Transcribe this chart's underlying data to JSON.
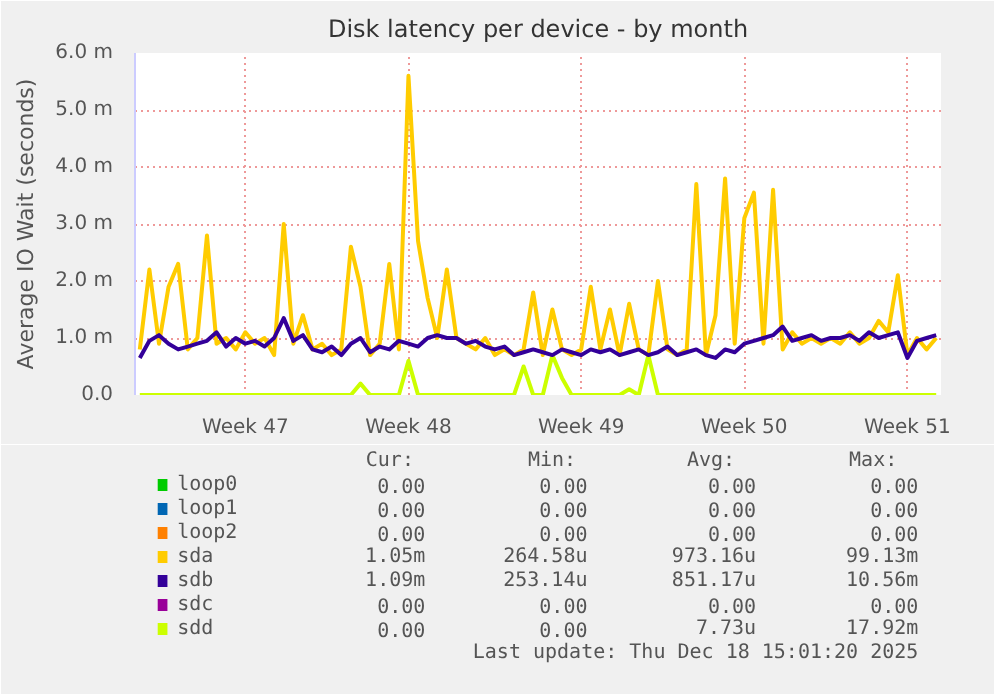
{
  "chart_data": {
    "type": "line",
    "title": "Disk latency per device - by month",
    "ylabel": "Average IO Wait (seconds)",
    "series": [
      {
        "name": "loop0",
        "color": "#00cc00",
        "values": [
          null,
          null,
          null,
          null,
          null,
          null,
          null,
          null,
          null,
          null,
          null,
          null,
          null,
          null,
          null,
          null,
          null,
          null,
          null,
          null,
          null,
          null,
          null,
          null,
          null,
          null,
          null,
          null,
          null,
          null,
          null,
          null,
          null,
          null,
          null,
          null,
          null,
          null,
          null,
          null,
          null,
          null,
          null,
          null,
          null,
          null,
          null,
          null,
          null,
          null,
          null,
          null,
          null,
          null,
          null,
          null,
          null,
          null,
          null,
          null,
          null,
          null,
          null,
          null,
          null,
          null,
          null,
          null,
          null,
          null,
          null,
          null,
          null,
          null,
          null,
          null,
          null,
          null,
          null,
          null,
          null,
          null,
          null,
          null
        ]
      },
      {
        "name": "loop1",
        "color": "#0066b3",
        "values": [
          null,
          null,
          null,
          null,
          null,
          null,
          null,
          null,
          null,
          null,
          null,
          null,
          null,
          null,
          null,
          null,
          null,
          null,
          null,
          null,
          null,
          null,
          null,
          null,
          null,
          null,
          null,
          null,
          null,
          null,
          null,
          null,
          null,
          null,
          null,
          null,
          null,
          null,
          null,
          null,
          null,
          null,
          null,
          null,
          null,
          null,
          null,
          null,
          null,
          null,
          null,
          null,
          null,
          null,
          null,
          null,
          null,
          null,
          null,
          null,
          null,
          null,
          null,
          null,
          null,
          null,
          null,
          null,
          null,
          null,
          null,
          null,
          null,
          null,
          null,
          null,
          null,
          null,
          null,
          null,
          null,
          null,
          null,
          null
        ]
      },
      {
        "name": "loop2",
        "color": "#ff8000",
        "values": [
          null,
          null,
          null,
          null,
          null,
          null,
          null,
          null,
          null,
          null,
          null,
          null,
          null,
          null,
          null,
          null,
          null,
          null,
          null,
          null,
          null,
          null,
          null,
          null,
          null,
          null,
          null,
          null,
          null,
          null,
          null,
          null,
          null,
          null,
          null,
          null,
          null,
          null,
          null,
          null,
          null,
          null,
          null,
          null,
          null,
          null,
          null,
          null,
          null,
          null,
          null,
          null,
          null,
          null,
          null,
          null,
          null,
          null,
          null,
          null,
          null,
          null,
          null,
          null,
          null,
          null,
          null,
          null,
          null,
          null,
          null,
          null,
          null,
          null,
          null,
          null,
          null,
          null,
          null,
          null,
          null,
          null,
          null,
          null
        ]
      },
      {
        "name": "sdc",
        "color": "#990099",
        "values": [
          null,
          null,
          null,
          null,
          null,
          null,
          null,
          null,
          null,
          null,
          null,
          null,
          null,
          null,
          null,
          null,
          null,
          null,
          null,
          null,
          null,
          null,
          null,
          null,
          null,
          null,
          null,
          null,
          null,
          null,
          null,
          null,
          null,
          null,
          null,
          null,
          null,
          null,
          null,
          null,
          null,
          null,
          null,
          null,
          null,
          null,
          null,
          null,
          null,
          null,
          null,
          null,
          null,
          null,
          null,
          null,
          null,
          null,
          null,
          null,
          null,
          null,
          null,
          null,
          null,
          null,
          null,
          null,
          null,
          null,
          null,
          null,
          null,
          null,
          null,
          null,
          null,
          null,
          null,
          null,
          null,
          null,
          null,
          null
        ]
      },
      {
        "name": "sdd",
        "color": "#ccff00",
        "values": [
          0,
          0,
          0,
          0,
          0,
          0,
          0,
          0,
          0,
          0,
          0,
          0,
          0,
          0,
          0,
          0,
          0,
          0,
          0,
          0,
          0,
          0,
          0,
          0.2,
          0,
          0,
          0,
          0,
          0.6,
          0,
          0,
          0,
          0,
          0,
          0,
          0,
          0,
          0,
          0,
          0,
          0.5,
          0,
          0,
          0.7,
          0.3,
          0,
          0,
          0,
          0,
          0,
          0,
          0.1,
          0,
          0.7,
          0,
          0,
          0,
          0,
          0,
          0,
          0,
          0,
          0,
          0,
          0,
          0,
          0,
          0,
          0,
          0,
          0,
          0,
          0,
          0,
          0,
          0,
          0,
          0,
          0,
          0,
          0,
          0,
          0,
          0
        ]
      },
      {
        "name": "sda",
        "color": "#ffcc00",
        "values": [
          0.8,
          2.2,
          0.9,
          1.9,
          2.3,
          0.8,
          1.0,
          2.8,
          0.9,
          1.0,
          0.8,
          1.1,
          0.9,
          1.0,
          0.7,
          3.0,
          0.9,
          1.4,
          0.8,
          0.9,
          0.7,
          0.8,
          2.6,
          1.9,
          0.7,
          0.9,
          2.3,
          0.8,
          5.6,
          2.7,
          1.7,
          1.0,
          2.2,
          1.0,
          0.9,
          0.8,
          1.0,
          0.7,
          0.8,
          0.7,
          0.8,
          1.8,
          0.7,
          1.5,
          0.8,
          0.7,
          0.8,
          1.9,
          0.8,
          1.5,
          0.7,
          1.6,
          0.8,
          0.7,
          2.0,
          0.8,
          0.7,
          0.8,
          3.7,
          0.7,
          1.4,
          3.8,
          0.9,
          3.1,
          3.55,
          0.9,
          3.6,
          0.8,
          1.1,
          0.9,
          1.0,
          0.9,
          1.0,
          0.9,
          1.1,
          0.9,
          1.0,
          1.3,
          1.1,
          2.1,
          0.7,
          1.0,
          0.8,
          1.0
        ]
      },
      {
        "name": "sdb",
        "color": "#330099",
        "values": [
          0.65,
          0.95,
          1.05,
          0.9,
          0.8,
          0.85,
          0.9,
          0.95,
          1.1,
          0.85,
          1.0,
          0.9,
          0.95,
          0.85,
          1.0,
          1.35,
          0.95,
          1.05,
          0.8,
          0.75,
          0.85,
          0.7,
          0.9,
          1.0,
          0.75,
          0.85,
          0.8,
          0.95,
          0.9,
          0.85,
          1.0,
          1.05,
          1.0,
          1.0,
          0.9,
          0.95,
          0.85,
          0.8,
          0.85,
          0.7,
          0.75,
          0.8,
          0.75,
          0.7,
          0.8,
          0.75,
          0.7,
          0.8,
          0.75,
          0.8,
          0.7,
          0.75,
          0.8,
          0.7,
          0.75,
          0.85,
          0.7,
          0.75,
          0.8,
          0.7,
          0.65,
          0.8,
          0.75,
          0.9,
          0.95,
          1.0,
          1.05,
          1.2,
          0.95,
          1.0,
          1.05,
          0.95,
          1.0,
          1.0,
          1.05,
          0.95,
          1.1,
          1.0,
          1.05,
          1.1,
          0.65,
          0.95,
          1.0,
          1.05
        ]
      }
    ],
    "categories": [
      null,
      null,
      null,
      null,
      null,
      null,
      null,
      null,
      null,
      null,
      null,
      "Week 47",
      null,
      null,
      null,
      null,
      null,
      null,
      null,
      null,
      null,
      null,
      null,
      null,
      null,
      null,
      null,
      null,
      "Week 48",
      null,
      null,
      null,
      null,
      null,
      null,
      null,
      null,
      null,
      null,
      null,
      null,
      null,
      null,
      null,
      null,
      null,
      "Week 49",
      null,
      null,
      null,
      null,
      null,
      null,
      null,
      null,
      null,
      null,
      null,
      null,
      null,
      null,
      null,
      null,
      "Week 50",
      null,
      null,
      null,
      null,
      null,
      null,
      null,
      null,
      null,
      null,
      null,
      null,
      null,
      null,
      null,
      null,
      "Week 51",
      null,
      null,
      null
    ],
    "ylim": [
      0,
      6
    ],
    "yticks": [
      {
        "value": 0,
        "label": "0.0"
      },
      {
        "value": 1,
        "label": "1.0 m"
      },
      {
        "value": 2,
        "label": "2.0 m"
      },
      {
        "value": 3,
        "label": "3.0 m"
      },
      {
        "value": 4,
        "label": "4.0 m"
      },
      {
        "value": 5,
        "label": "5.0 m"
      },
      {
        "value": 6,
        "label": "6.0 m"
      }
    ],
    "grid": true,
    "legend": "bottom",
    "annotations": [
      "Cur:",
      "Min:",
      "Avg:",
      "Max:",
      "0.00",
      "0.00",
      "0.00",
      "0.00",
      "0.00",
      "0.00",
      "0.00",
      "0.00",
      "0.00",
      "0.00",
      "0.00",
      "0.00",
      "0.00",
      "0.00",
      "0.00",
      "0.00",
      "0.00",
      "0.00",
      "7.73u",
      "17.92m",
      "1.05m",
      "264.58u",
      "973.16u",
      "99.13m",
      "1.09m",
      "253.14u",
      "851.17u",
      "10.56m",
      "Last update: Thu Dec 18 15:01:20 2025"
    ]
  }
}
